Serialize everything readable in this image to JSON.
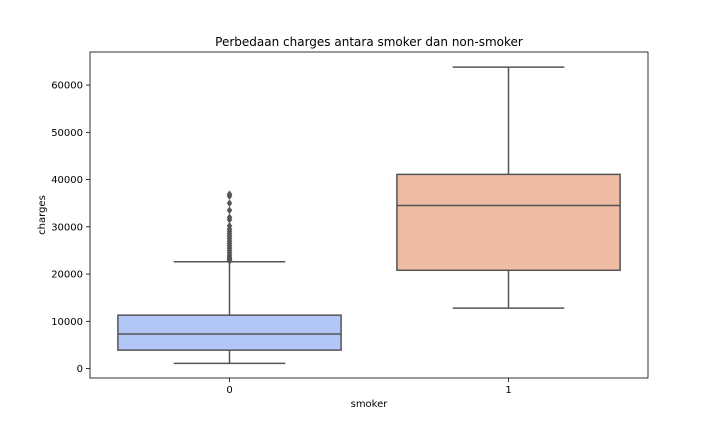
{
  "chart_data": {
    "type": "box",
    "title": "Perbedaan charges antara smoker dan non-smoker",
    "xlabel": "smoker",
    "ylabel": "charges",
    "ylim": [
      -2000,
      67000
    ],
    "yticks": [
      0,
      10000,
      20000,
      30000,
      40000,
      50000,
      60000
    ],
    "categories": [
      "0",
      "1"
    ],
    "boxes": [
      {
        "category": "0",
        "color": "#b3c7f7",
        "whisker_low": 1100,
        "q1": 3900,
        "median": 7300,
        "q3": 11300,
        "whisker_high": 22600,
        "outliers": [
          22800,
          23000,
          23300,
          23600,
          24000,
          24500,
          25000,
          25500,
          26000,
          26500,
          27000,
          27500,
          28000,
          28500,
          29000,
          29500,
          30200,
          31500,
          32000,
          33500,
          35000,
          36500,
          36900
        ]
      },
      {
        "category": "1",
        "color": "#eebba3",
        "whisker_low": 12800,
        "q1": 20800,
        "median": 34500,
        "q3": 41100,
        "whisker_high": 63800,
        "outliers": []
      }
    ],
    "grid": false
  }
}
